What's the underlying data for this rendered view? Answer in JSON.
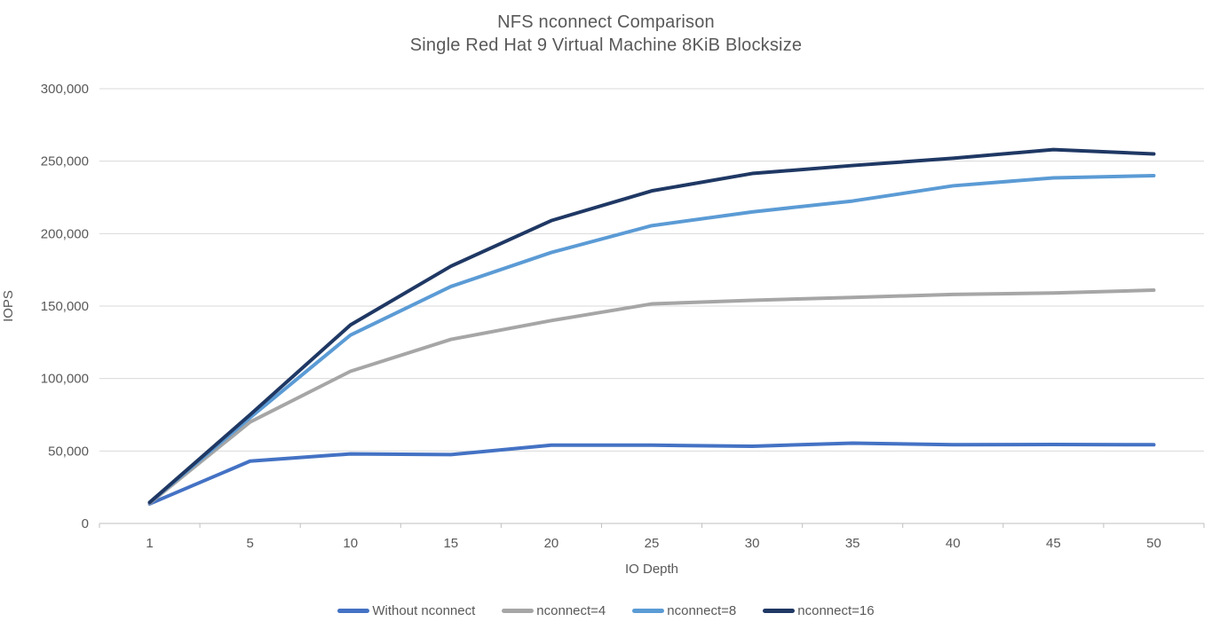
{
  "chart_data": {
    "type": "line",
    "title": "NFS nconnect Comparison",
    "subtitle": "Single Red Hat 9 Virtual Machine 8KiB Blocksize",
    "xlabel": "IO Depth",
    "ylabel": "IOPS",
    "categories": [
      1,
      5,
      10,
      15,
      20,
      25,
      30,
      35,
      40,
      45,
      50
    ],
    "ylim": [
      0,
      300000
    ],
    "ytick_step": 50000,
    "yticks": [
      0,
      50000,
      100000,
      150000,
      200000,
      250000,
      300000
    ],
    "ytick_labels": [
      "0",
      "50,000",
      "100,000",
      "150,000",
      "200,000",
      "250,000",
      "300,000"
    ],
    "grid": "horizontal",
    "legend_position": "bottom",
    "series": [
      {
        "name": "Without nconnect",
        "color": "#4472C4",
        "values": [
          13500,
          43000,
          48000,
          47500,
          54000,
          54000,
          53300,
          55400,
          54300,
          54500,
          54300
        ]
      },
      {
        "name": "nconnect=4",
        "color": "#A6A6A6",
        "values": [
          14000,
          70000,
          105000,
          127000,
          140000,
          151500,
          154000,
          156000,
          158000,
          159000,
          161000
        ]
      },
      {
        "name": "nconnect=8",
        "color": "#5B9BD5",
        "values": [
          14500,
          73000,
          130000,
          163500,
          187000,
          205500,
          215000,
          222500,
          233000,
          238500,
          240000
        ]
      },
      {
        "name": "nconnect=16",
        "color": "#1F3864",
        "values": [
          14500,
          75000,
          137000,
          177500,
          209000,
          229500,
          241500,
          247000,
          252000,
          258000,
          255000
        ]
      }
    ]
  },
  "colors": {
    "text": "#595959",
    "gridline": "#D9D9D9",
    "axis": "#BFBFBF",
    "background": "#FFFFFF"
  }
}
